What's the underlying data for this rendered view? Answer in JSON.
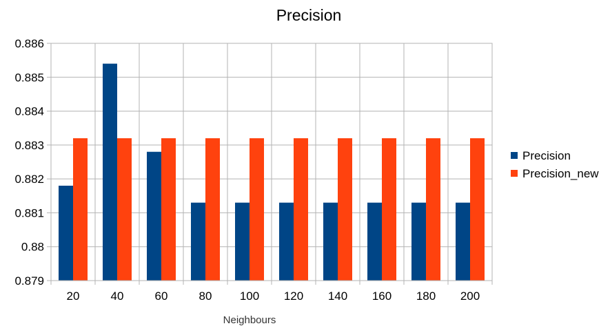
{
  "chart_data": {
    "type": "bar",
    "title": "Precision",
    "xlabel": "Neighbours",
    "ylabel": "",
    "categories": [
      "20",
      "40",
      "60",
      "80",
      "100",
      "120",
      "140",
      "160",
      "180",
      "200"
    ],
    "series": [
      {
        "name": "Precision",
        "color": "#004586",
        "values": [
          0.8818,
          0.8854,
          0.8828,
          0.8813,
          0.8813,
          0.8813,
          0.8813,
          0.8813,
          0.8813,
          0.8813
        ]
      },
      {
        "name": "Precision_new",
        "color": "#ff420e",
        "values": [
          0.8832,
          0.8832,
          0.8832,
          0.8832,
          0.8832,
          0.8832,
          0.8832,
          0.8832,
          0.8832,
          0.8832
        ]
      }
    ],
    "ylim": [
      0.879,
      0.886
    ],
    "yticks": [
      "0.879",
      "0.88",
      "0.881",
      "0.882",
      "0.883",
      "0.884",
      "0.885",
      "0.886"
    ],
    "grid": true,
    "legend_position": "right"
  }
}
